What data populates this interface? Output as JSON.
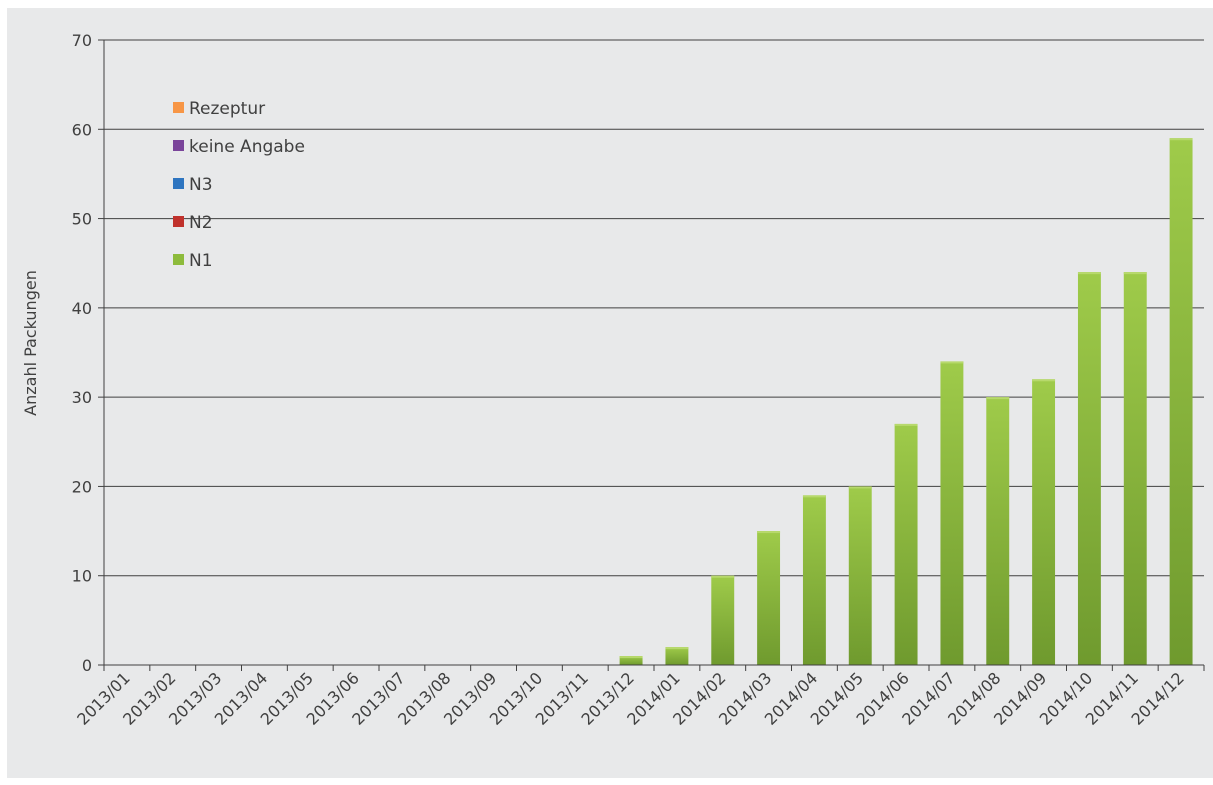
{
  "chart_data": {
    "type": "bar",
    "stacked": true,
    "title": "",
    "xlabel": "",
    "ylabel": "Anzahl Packungen",
    "ylim": [
      0,
      70
    ],
    "yticks": [
      0,
      10,
      20,
      30,
      40,
      50,
      60,
      70
    ],
    "grid": true,
    "legend_position": "top-left",
    "categories": [
      "2013/01",
      "2013/02",
      "2013/03",
      "2013/04",
      "2013/05",
      "2013/06",
      "2013/07",
      "2013/08",
      "2013/09",
      "2013/10",
      "2013/11",
      "2013/12",
      "2014/01",
      "2014/02",
      "2014/03",
      "2014/04",
      "2014/05",
      "2014/06",
      "2014/07",
      "2014/08",
      "2014/09",
      "2014/10",
      "2014/11",
      "2014/12"
    ],
    "series": [
      {
        "name": "N1",
        "color": "#8dbb3c",
        "values": [
          0,
          0,
          0,
          0,
          0,
          0,
          0,
          0,
          0,
          0,
          0,
          1,
          2,
          10,
          15,
          19,
          20,
          27,
          34,
          30,
          32,
          44,
          44,
          59
        ]
      },
      {
        "name": "N2",
        "color": "#c0312c",
        "values": [
          0,
          0,
          0,
          0,
          0,
          0,
          0,
          0,
          0,
          0,
          0,
          0,
          0,
          0,
          0,
          0,
          0,
          0,
          0,
          0,
          0,
          0,
          0,
          0
        ]
      },
      {
        "name": "N3",
        "color": "#2e75c0",
        "values": [
          0,
          0,
          0,
          0,
          0,
          0,
          0,
          0,
          0,
          0,
          0,
          0,
          0,
          0,
          0,
          0,
          0,
          0,
          0,
          0,
          0,
          0,
          0,
          0
        ]
      },
      {
        "name": "keine Angabe",
        "color": "#7a449a",
        "values": [
          0,
          0,
          0,
          0,
          0,
          0,
          0,
          0,
          0,
          0,
          0,
          0,
          0,
          0,
          0,
          0,
          0,
          0,
          0,
          0,
          0,
          0,
          0,
          0
        ]
      },
      {
        "name": "Rezeptur",
        "color": "#f79646",
        "values": [
          0,
          0,
          0,
          0,
          0,
          0,
          0,
          0,
          0,
          0,
          0,
          0,
          0,
          0,
          0,
          0,
          0,
          0,
          0,
          0,
          0,
          0,
          0,
          0
        ]
      }
    ],
    "legend_order": [
      "Rezeptur",
      "keine Angabe",
      "N3",
      "N2",
      "N1"
    ]
  }
}
